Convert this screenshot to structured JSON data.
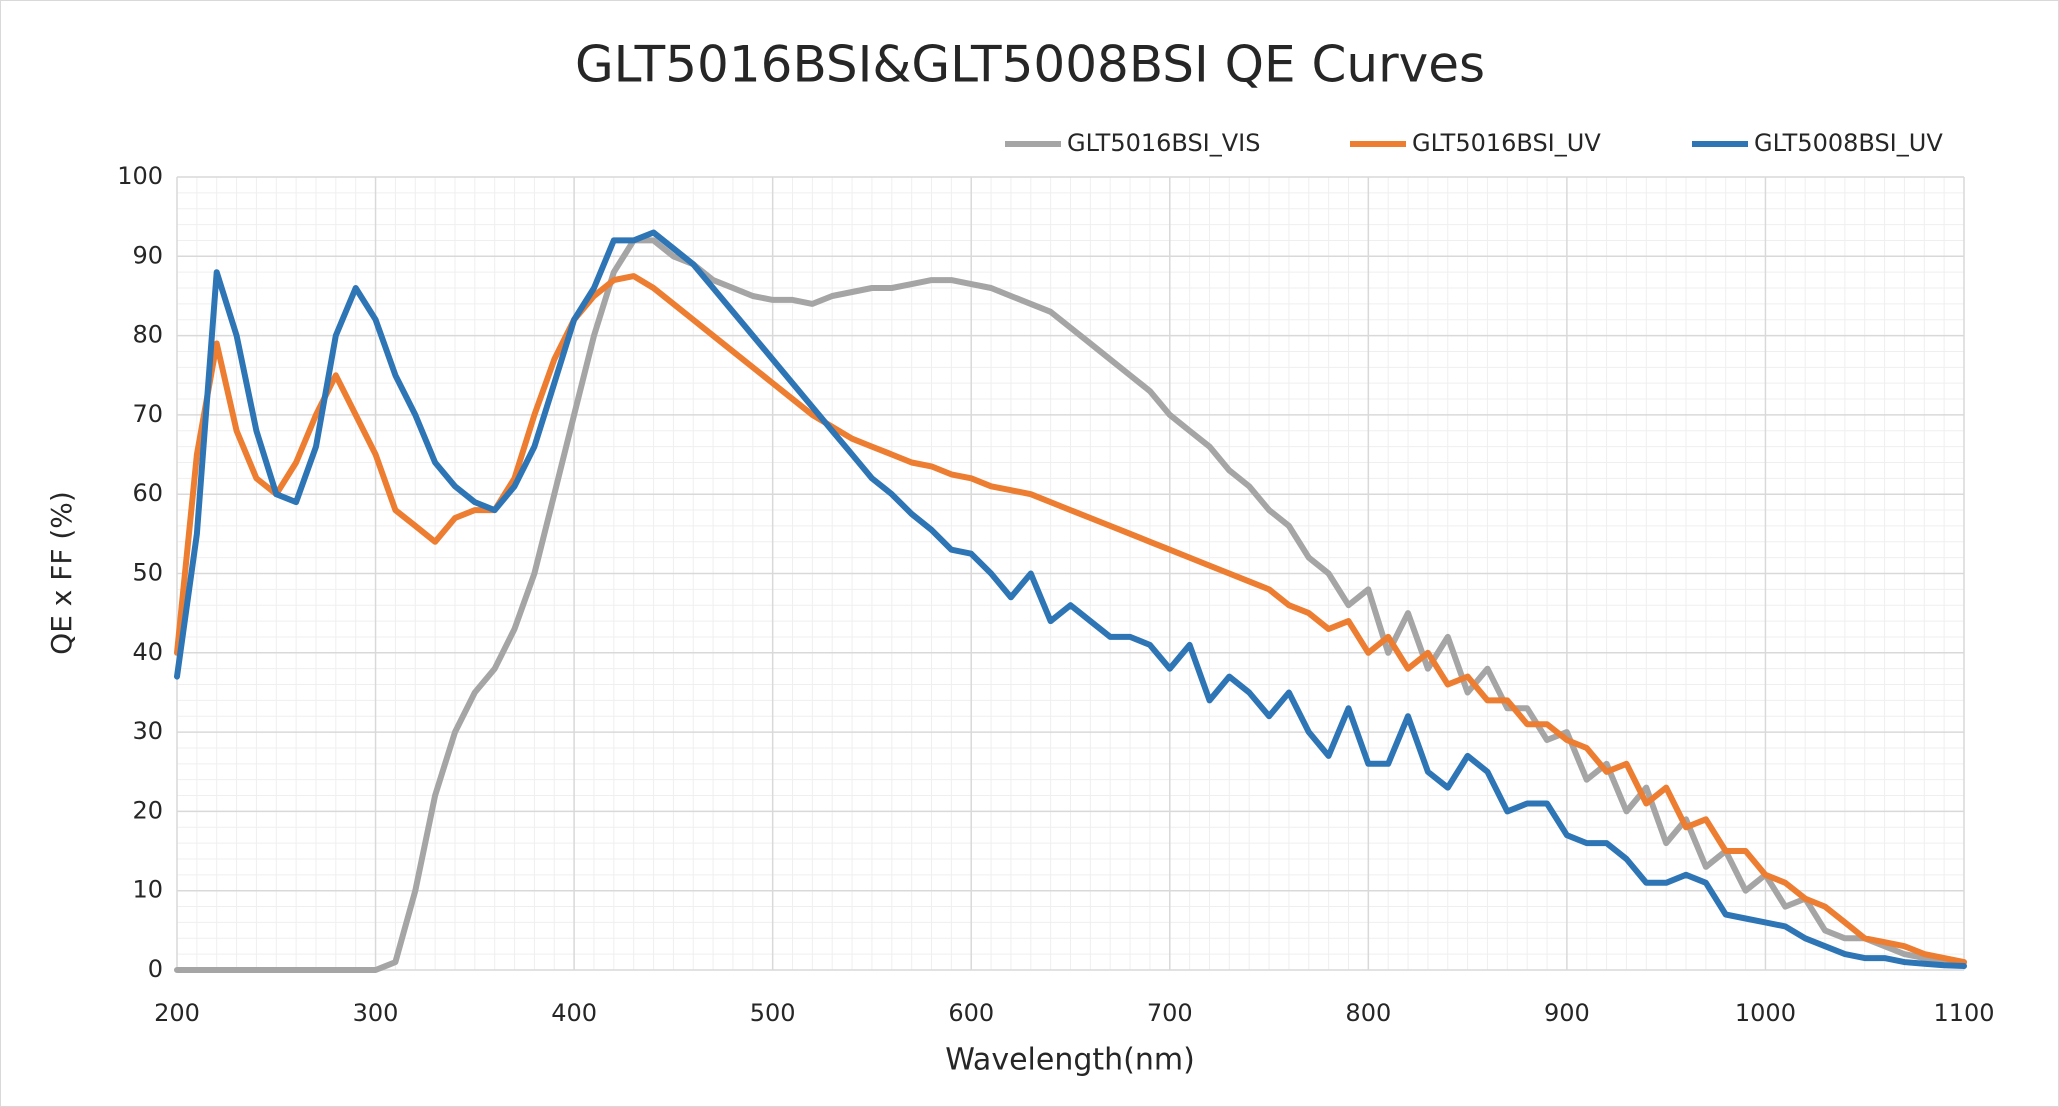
{
  "chart_data": {
    "type": "line",
    "title": "GLT5016BSI&GLT5008BSI QE Curves",
    "x_label": "Wavelength(nm)",
    "y_label": "QE x FF (%)",
    "x": [
      200,
      210,
      220,
      230,
      240,
      250,
      260,
      270,
      280,
      290,
      300,
      310,
      320,
      330,
      340,
      350,
      360,
      370,
      380,
      390,
      400,
      410,
      420,
      430,
      440,
      450,
      460,
      470,
      480,
      490,
      500,
      510,
      520,
      530,
      540,
      550,
      560,
      570,
      580,
      590,
      600,
      610,
      620,
      630,
      640,
      650,
      660,
      670,
      680,
      690,
      700,
      710,
      720,
      730,
      740,
      750,
      760,
      770,
      780,
      790,
      800,
      810,
      820,
      830,
      840,
      850,
      860,
      870,
      880,
      890,
      900,
      910,
      920,
      930,
      940,
      950,
      960,
      970,
      980,
      990,
      1000,
      1010,
      1020,
      1030,
      1040,
      1050,
      1060,
      1070,
      1080,
      1090,
      1100
    ],
    "series": [
      {
        "name": "GLT5016BSI_VIS",
        "color": "#a5a5a5",
        "values": [
          0,
          0,
          0,
          0,
          0,
          0,
          0,
          0,
          0,
          0,
          0,
          1,
          10,
          22,
          30,
          35,
          38,
          43,
          50,
          60,
          70,
          80,
          88,
          92,
          92,
          90,
          89,
          87,
          86,
          85,
          84.5,
          84.5,
          84,
          85,
          85.5,
          86,
          86,
          86.5,
          87,
          87,
          86.5,
          86,
          85,
          84,
          83,
          81,
          79,
          77,
          75,
          73,
          70,
          68,
          66,
          63,
          61,
          58,
          56,
          52,
          50,
          46,
          48,
          40,
          45,
          38,
          42,
          35,
          38,
          33,
          33,
          29,
          30,
          24,
          26,
          20,
          23,
          16,
          19,
          13,
          15,
          10,
          12,
          8,
          9,
          5,
          4,
          4,
          3,
          2,
          1.5,
          1,
          1
        ]
      },
      {
        "name": "GLT5016BSI_UV",
        "color": "#ed7d31",
        "values": [
          40,
          65,
          79,
          68,
          62,
          60,
          64,
          70,
          75,
          70,
          65,
          58,
          56,
          54,
          57,
          58,
          58,
          62,
          70,
          77,
          82,
          85,
          87,
          87.5,
          86,
          84,
          82,
          80,
          78,
          76,
          74,
          72,
          70,
          68.5,
          67,
          66,
          65,
          64,
          63.5,
          62.5,
          62,
          61,
          60.5,
          60,
          59,
          58,
          57,
          56,
          55,
          54,
          53,
          52,
          51,
          50,
          49,
          48,
          46,
          45,
          43,
          44,
          40,
          42,
          38,
          40,
          36,
          37,
          34,
          34,
          31,
          31,
          29,
          28,
          25,
          26,
          21,
          23,
          18,
          19,
          15,
          15,
          12,
          11,
          9,
          8,
          6,
          4,
          3.5,
          3,
          2,
          1.5,
          1
        ]
      },
      {
        "name": "GLT5008BSI_UV",
        "color": "#2e75b6",
        "values": [
          37,
          55,
          88,
          80,
          68,
          60,
          59,
          66,
          80,
          86,
          82,
          75,
          70,
          64,
          61,
          59,
          58,
          61,
          66,
          74,
          82,
          86,
          92,
          92,
          93,
          91,
          89,
          86,
          83,
          80,
          77,
          74,
          71,
          68,
          65,
          62,
          60,
          57.5,
          55.5,
          53,
          52.5,
          50,
          47,
          50,
          44,
          46,
          44,
          42,
          42,
          41,
          38,
          41,
          34,
          37,
          35,
          32,
          35,
          30,
          27,
          33,
          26,
          26,
          32,
          25,
          23,
          27,
          25,
          20,
          21,
          21,
          17,
          16,
          16,
          14,
          11,
          11,
          12,
          11,
          7,
          6.5,
          6,
          5.5,
          4,
          3,
          2,
          1.5,
          1.5,
          1,
          0.8,
          0.6,
          0.5
        ]
      }
    ],
    "xlim": [
      200,
      1100
    ],
    "xticks": [
      200,
      300,
      400,
      500,
      600,
      700,
      800,
      900,
      1000,
      1100
    ],
    "ylim": [
      0,
      100
    ],
    "yticks": [
      0,
      10,
      20,
      30,
      40,
      50,
      60,
      70,
      80,
      90,
      100
    ],
    "grid": true,
    "legend": "top-right"
  }
}
